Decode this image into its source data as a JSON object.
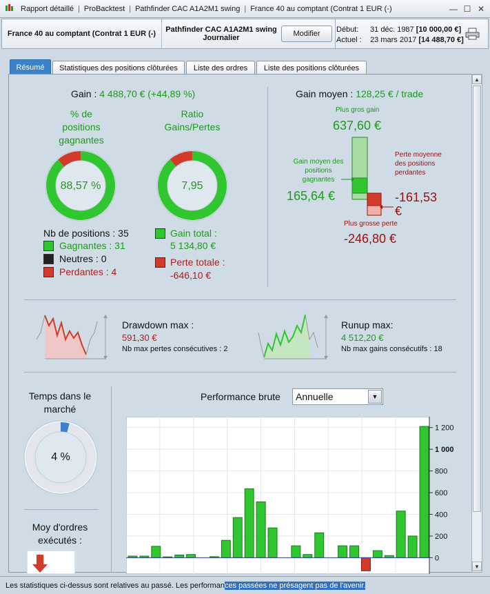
{
  "titlebar": {
    "items": [
      "Rapport détaillé",
      "ProBacktest",
      "Pathfinder CAC A1A2M1 swing",
      "France 40 au comptant (Contrat 1 EUR (-)"
    ]
  },
  "header": {
    "instrument": "France 40 au comptant (Contrat 1 EUR (-)",
    "strategy": "Pathfinder CAC A1A2M1 swing",
    "timeframe": "Journalier",
    "modify_label": "Modifier",
    "start_label": "Début:",
    "start_date": "31 déc. 1987",
    "start_value": "[10 000,00 €]",
    "current_label": "Actuel :",
    "current_date": "23 mars 2017",
    "current_value": "[14 488,70 €]"
  },
  "tabs": [
    "Résumé",
    "Statistiques des positions clôturées",
    "Liste des ordres",
    "Liste des positions clôturées"
  ],
  "summary": {
    "gain_label": "Gain : ",
    "gain_value": "4 488,70 € (+44,89 %)",
    "pct_winning_label": "% de positions gagnantes",
    "pct_winning_value": "88,57 %",
    "pct_winning_fraction": 0.8857,
    "ratio_label": "Ratio Gains/Pertes",
    "ratio_value": "7,95",
    "ratio_fraction": 0.888,
    "nb_positions_label": "Nb de positions : 35",
    "winners_label": "Gagnantes : 31",
    "neutral_label": "Neutres : 0",
    "losers_label": "Perdantes : 4",
    "total_gain_label": "Gain total :",
    "total_gain_value": "5 134,80 €",
    "total_loss_label": "Perte totale :",
    "total_loss_value": "-646,10 €",
    "colors": {
      "green": "#2fc62f",
      "red": "#d23a2a",
      "black": "#222222"
    }
  },
  "avg_gain": {
    "label": "Gain moyen : ",
    "value": "128,25 € / trade",
    "biggest_gain_label": "Plus gros gain",
    "biggest_gain_value": "637,60 €",
    "avg_winning_label": "Gain moyen des positions gagnantes",
    "avg_winning_value": "165,64 €",
    "avg_losing_label": "Perte moyenne des positions perdantes",
    "avg_losing_value": "-161,53 €",
    "biggest_loss_label": "Plus grosse perte",
    "biggest_loss_value": "-246,80 €"
  },
  "drawdown": {
    "label": "Drawdown max :",
    "value": "591,30 €",
    "sub": "Nb max pertes consécutives : 2"
  },
  "runup": {
    "label": "Runup max:",
    "value": "4 512,20 €",
    "sub": "Nb max gains consécutifs : 18"
  },
  "time_in_market": {
    "label": "Temps dans le marché",
    "value": "4 %",
    "fraction": 0.04
  },
  "avg_orders": {
    "label": "Moy d'ordres exécutés :"
  },
  "performance": {
    "label": "Performance brute",
    "period": "Annuelle"
  },
  "chart_data": {
    "type": "bar",
    "title": "",
    "ylim": [
      -150,
      1300
    ],
    "yticks": [
      {
        "v": 1200,
        "t": "1 200"
      },
      {
        "v": 1000,
        "t": "1 000"
      },
      {
        "v": 800,
        "t": "800"
      },
      {
        "v": 600,
        "t": "600"
      },
      {
        "v": 400,
        "t": "400"
      },
      {
        "v": 200,
        "t": "200"
      },
      {
        "v": 0,
        "t": "0"
      }
    ],
    "values": [
      15,
      15,
      105,
      8,
      25,
      30,
      0,
      10,
      160,
      370,
      635,
      515,
      275,
      0,
      110,
      30,
      230,
      0,
      110,
      110,
      -120,
      65,
      20,
      430,
      200,
      1210
    ]
  },
  "status": {
    "text_normal": "Les statistiques ci-dessus sont relatives au passé. Les performan",
    "text_selected": "ces passées ne présagent pas de l'avenir."
  }
}
